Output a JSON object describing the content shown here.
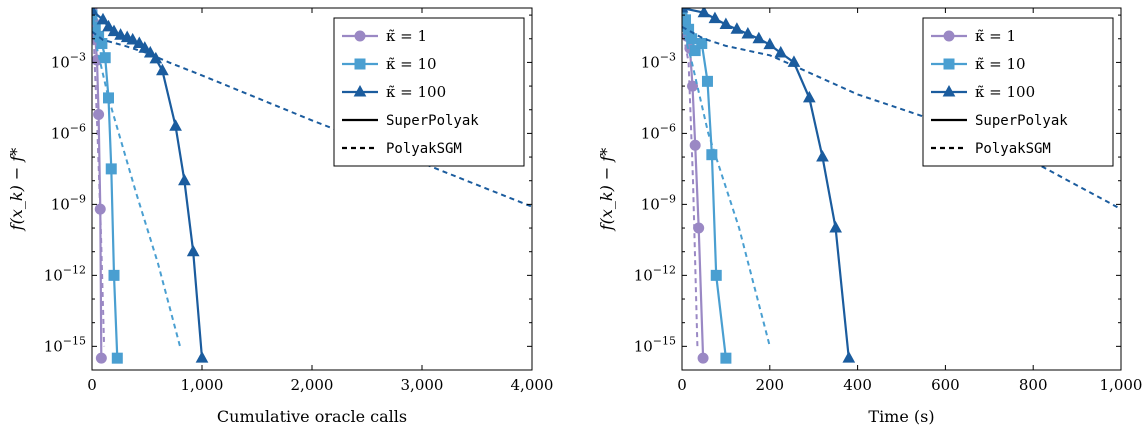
{
  "chart_data": [
    {
      "type": "line",
      "xlabel": "Cumulative oracle calls",
      "ylabel": "f(x_k) − f*",
      "xlim": [
        0,
        4000
      ],
      "ylog": true,
      "ylim_exp": [
        -16,
        -0.7
      ],
      "xticks": [
        0,
        1000,
        2000,
        3000,
        4000
      ],
      "xtick_labels": [
        "0",
        "1,000",
        "2,000",
        "3,000",
        "4,000"
      ],
      "yticks_exp": [
        -3,
        -6,
        -9,
        -12,
        -15
      ],
      "grid": false,
      "legend_position": "top-right",
      "series": [
        {
          "kappa": "1",
          "method": "SuperPolyak",
          "color": "#9A88C4",
          "marker": "circle",
          "dash": false,
          "points": [
            [
              0,
              -0.7
            ],
            [
              15,
              -1.3
            ],
            [
              30,
              -2.0
            ],
            [
              45,
              -2.9
            ],
            [
              60,
              -5.2
            ],
            [
              75,
              -9.2
            ],
            [
              85,
              -15.5
            ]
          ]
        },
        {
          "kappa": "10",
          "method": "SuperPolyak",
          "color": "#4A9FD1",
          "marker": "square",
          "dash": false,
          "points": [
            [
              0,
              -1.0
            ],
            [
              30,
              -1.5
            ],
            [
              60,
              -1.9
            ],
            [
              90,
              -2.2
            ],
            [
              120,
              -2.8
            ],
            [
              150,
              -4.5
            ],
            [
              175,
              -7.5
            ],
            [
              200,
              -12.0
            ],
            [
              230,
              -15.5
            ]
          ]
        },
        {
          "kappa": "100",
          "method": "SuperPolyak",
          "color": "#1B5C9E",
          "marker": "triangle",
          "dash": false,
          "points": [
            [
              0,
              -0.8
            ],
            [
              100,
              -1.2
            ],
            [
              150,
              -1.5
            ],
            [
              200,
              -1.7
            ],
            [
              260,
              -1.85
            ],
            [
              320,
              -1.95
            ],
            [
              370,
              -2.05
            ],
            [
              430,
              -2.2
            ],
            [
              480,
              -2.4
            ],
            [
              530,
              -2.6
            ],
            [
              580,
              -2.85
            ],
            [
              640,
              -3.35
            ],
            [
              760,
              -5.7
            ],
            [
              840,
              -8.0
            ],
            [
              920,
              -11.0
            ],
            [
              1000,
              -15.5
            ]
          ]
        },
        {
          "kappa": "1",
          "method": "PolyakSGM",
          "color": "#9A88C4",
          "dash": true,
          "points": [
            [
              0,
              -1.3
            ],
            [
              20,
              -2.5
            ],
            [
              50,
              -6.0
            ],
            [
              80,
              -10.0
            ],
            [
              110,
              -15.0
            ]
          ]
        },
        {
          "kappa": "10",
          "method": "PolyakSGM",
          "color": "#4A9FD1",
          "dash": true,
          "points": [
            [
              0,
              -1.2
            ],
            [
              50,
              -2.5
            ],
            [
              150,
              -4.5
            ],
            [
              400,
              -8.5
            ],
            [
              600,
              -11.5
            ],
            [
              800,
              -15.0
            ]
          ]
        },
        {
          "kappa": "100",
          "method": "PolyakSGM",
          "color": "#1B5C9E",
          "dash": true,
          "points": [
            [
              0,
              -1.7
            ],
            [
              100,
              -2.05
            ],
            [
              300,
              -2.3
            ],
            [
              500,
              -2.6
            ],
            [
              700,
              -3.0
            ],
            [
              1000,
              -3.55
            ],
            [
              2000,
              -5.45
            ],
            [
              3000,
              -7.25
            ],
            [
              4000,
              -9.1
            ]
          ]
        }
      ]
    },
    {
      "type": "line",
      "xlabel": "Time (s)",
      "ylabel": "f(x_k) − f*",
      "xlim": [
        0,
        1000
      ],
      "ylog": true,
      "ylim_exp": [
        -16,
        -0.7
      ],
      "xticks": [
        0,
        200,
        400,
        600,
        800,
        1000
      ],
      "xtick_labels": [
        "0",
        "200",
        "400",
        "600",
        "800",
        "1,000"
      ],
      "yticks_exp": [
        -3,
        -6,
        -9,
        -12,
        -15
      ],
      "grid": false,
      "legend_position": "top-right",
      "series": [
        {
          "kappa": "1",
          "method": "SuperPolyak",
          "color": "#9A88C4",
          "marker": "circle",
          "dash": false,
          "points": [
            [
              0,
              -0.8
            ],
            [
              5,
              -1.3
            ],
            [
              12,
              -1.9
            ],
            [
              18,
              -2.4
            ],
            [
              24,
              -4.0
            ],
            [
              30,
              -6.5
            ],
            [
              38,
              -10.0
            ],
            [
              48,
              -15.5
            ]
          ]
        },
        {
          "kappa": "10",
          "method": "SuperPolyak",
          "color": "#4A9FD1",
          "marker": "square",
          "dash": false,
          "points": [
            [
              0,
              -0.9
            ],
            [
              8,
              -1.2
            ],
            [
              15,
              -1.6
            ],
            [
              22,
              -2.0
            ],
            [
              30,
              -2.5
            ],
            [
              45,
              -2.2
            ],
            [
              58,
              -3.8
            ],
            [
              68,
              -6.9
            ],
            [
              78,
              -12.0
            ],
            [
              100,
              -15.5
            ]
          ]
        },
        {
          "kappa": "100",
          "method": "SuperPolyak",
          "color": "#1B5C9E",
          "marker": "triangle",
          "dash": false,
          "points": [
            [
              0,
              -0.7
            ],
            [
              50,
              -0.9
            ],
            [
              75,
              -1.15
            ],
            [
              100,
              -1.4
            ],
            [
              125,
              -1.6
            ],
            [
              150,
              -1.8
            ],
            [
              175,
              -2.0
            ],
            [
              200,
              -2.25
            ],
            [
              225,
              -2.6
            ],
            [
              255,
              -3.0
            ],
            [
              290,
              -4.5
            ],
            [
              320,
              -7.0
            ],
            [
              350,
              -10.0
            ],
            [
              380,
              -15.5
            ]
          ]
        },
        {
          "kappa": "1",
          "method": "PolyakSGM",
          "color": "#9A88C4",
          "dash": true,
          "points": [
            [
              0,
              -1.5
            ],
            [
              15,
              -3.0
            ],
            [
              25,
              -8.0
            ],
            [
              35,
              -15.0
            ]
          ]
        },
        {
          "kappa": "10",
          "method": "PolyakSGM",
          "color": "#4A9FD1",
          "dash": true,
          "points": [
            [
              0,
              -1.5
            ],
            [
              20,
              -2.8
            ],
            [
              60,
              -6.0
            ],
            [
              130,
              -10.0
            ],
            [
              200,
              -15.0
            ]
          ]
        },
        {
          "kappa": "100",
          "method": "PolyakSGM",
          "color": "#1B5C9E",
          "dash": true,
          "points": [
            [
              0,
              -1.5
            ],
            [
              50,
              -2.0
            ],
            [
              100,
              -2.3
            ],
            [
              200,
              -2.7
            ],
            [
              250,
              -3.1
            ],
            [
              400,
              -4.35
            ],
            [
              600,
              -5.6
            ],
            [
              800,
              -7.2
            ],
            [
              1000,
              -9.2
            ]
          ]
        }
      ]
    }
  ],
  "legend": {
    "entries": [
      {
        "label": "κ̃ = 1",
        "color": "#9A88C4",
        "marker": "circle"
      },
      {
        "label": "κ̃ = 10",
        "color": "#4A9FD1",
        "marker": "square"
      },
      {
        "label": "κ̃ = 100",
        "color": "#1B5C9E",
        "marker": "triangle"
      },
      {
        "label": "SuperPolyak",
        "color": "#000000",
        "dash": false,
        "mono": true
      },
      {
        "label": "PolyakSGM",
        "color": "#000000",
        "dash": true,
        "mono": true
      }
    ]
  }
}
